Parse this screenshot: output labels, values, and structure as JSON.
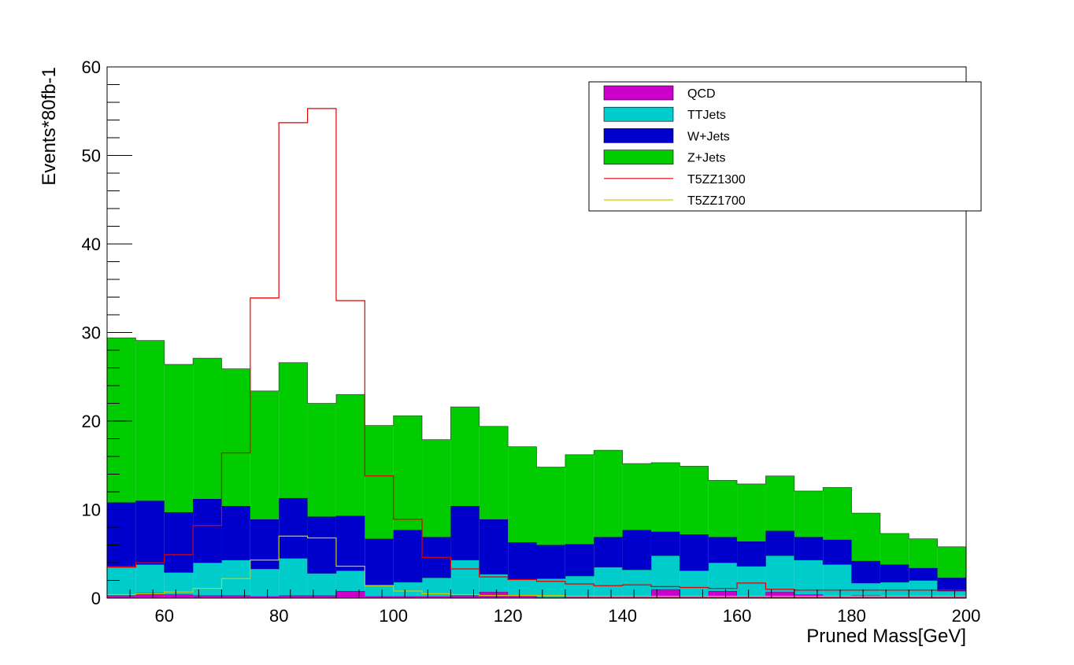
{
  "chart_data": {
    "type": "stacked-histogram",
    "xlabel": "Pruned Mass[GeV]",
    "ylabel": "Events*80fb-1",
    "xlim": [
      50,
      200
    ],
    "ylim": [
      0,
      60
    ],
    "bin_width": 5,
    "bin_edges_start": 50,
    "x_ticks": [
      60,
      80,
      100,
      120,
      140,
      160,
      180,
      200
    ],
    "y_ticks": [
      0,
      10,
      20,
      30,
      40,
      50,
      60
    ],
    "legend_position": "top-right",
    "stacked_series": [
      {
        "name": "QCD",
        "color": "#cc00cc",
        "values": [
          0.3,
          0.6,
          0.4,
          0.3,
          0.3,
          0.2,
          0.3,
          0.3,
          0.8,
          0.2,
          0.2,
          0.2,
          0.3,
          0.7,
          0.3,
          0.1,
          0.2,
          0.2,
          0.2,
          1.0,
          0.2,
          0.8,
          0.2,
          0.7,
          0.4,
          0.2,
          0.3,
          0.2,
          0.2,
          0.2
        ]
      },
      {
        "name": "TTJets",
        "color": "#00cccc",
        "values": [
          3.3,
          3.2,
          2.5,
          3.7,
          4.0,
          3.1,
          4.2,
          2.5,
          2.3,
          1.3,
          1.6,
          2.1,
          4.0,
          2.0,
          1.8,
          2.1,
          2.3,
          3.3,
          3.0,
          3.8,
          2.9,
          3.2,
          3.4,
          4.1,
          3.9,
          3.6,
          1.4,
          1.6,
          1.8,
          0.6
        ]
      },
      {
        "name": "W+Jets",
        "color": "#0000cc",
        "values": [
          7.2,
          7.2,
          6.8,
          7.2,
          6.1,
          5.6,
          6.8,
          6.4,
          6.2,
          5.2,
          5.9,
          4.6,
          6.1,
          6.2,
          4.2,
          3.8,
          3.6,
          3.4,
          4.5,
          2.7,
          4.1,
          2.9,
          2.8,
          2.8,
          2.6,
          2.8,
          2.5,
          2.0,
          1.4,
          1.5
        ]
      },
      {
        "name": "Z+Jets",
        "color": "#00cc00",
        "values": [
          18.6,
          18.1,
          16.7,
          15.9,
          15.5,
          14.5,
          15.3,
          12.8,
          13.7,
          12.8,
          12.9,
          11.0,
          11.2,
          10.5,
          10.8,
          8.8,
          10.1,
          9.8,
          7.5,
          7.8,
          7.7,
          6.4,
          6.5,
          6.2,
          5.2,
          5.9,
          5.4,
          3.5,
          3.3,
          3.5
        ]
      }
    ],
    "line_series": [
      {
        "name": "T5ZZ1300",
        "color": "#e00000",
        "values": [
          3.5,
          4.0,
          4.9,
          8.2,
          16.4,
          33.9,
          53.7,
          55.3,
          33.6,
          13.8,
          8.9,
          4.6,
          3.3,
          2.4,
          2.1,
          1.9,
          1.6,
          1.4,
          1.5,
          1.3,
          1.2,
          1.1,
          1.7,
          1.0,
          0.9,
          0.9,
          0.9,
          0.9,
          0.9,
          0.9
        ]
      },
      {
        "name": "T5ZZ1700",
        "color": "#cccc00",
        "values": [
          0.4,
          0.5,
          0.7,
          1.1,
          2.2,
          4.3,
          7.0,
          6.8,
          3.6,
          1.4,
          0.8,
          0.5,
          0.4,
          0.3,
          0.3,
          0.3,
          0.2,
          0.2,
          0.2,
          0.2,
          0.2,
          0.2,
          0.2,
          0.2,
          0.2,
          0.2,
          0.2,
          0.2,
          0.2,
          0.2
        ]
      }
    ]
  }
}
